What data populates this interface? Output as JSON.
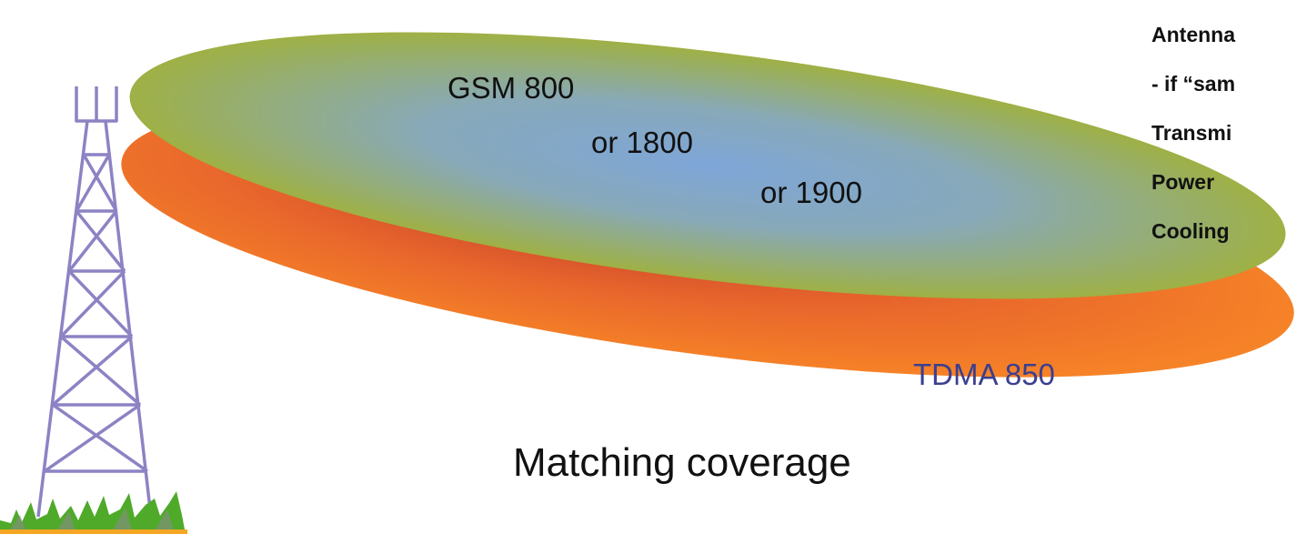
{
  "coverage": {
    "gsm_lines": [
      "GSM 800",
      "or 1800",
      "or 1900"
    ],
    "tdma_label": "TDMA 850",
    "caption": "Matching coverage"
  },
  "side_list": [
    "Antenna",
    "- if “sam",
    "Transmi",
    "Power",
    "Cooling"
  ],
  "colors": {
    "gsm_outer": "#a3b22e",
    "gsm_inner": "#7ea6d8",
    "tdma_outer": "#f78427",
    "tdma_inner": "#c0392b",
    "tower": "#8c83c4",
    "grass": "#4faa2a",
    "ground_line": "#f5a623"
  },
  "icons": [
    "tower-icon",
    "grass-icon"
  ]
}
